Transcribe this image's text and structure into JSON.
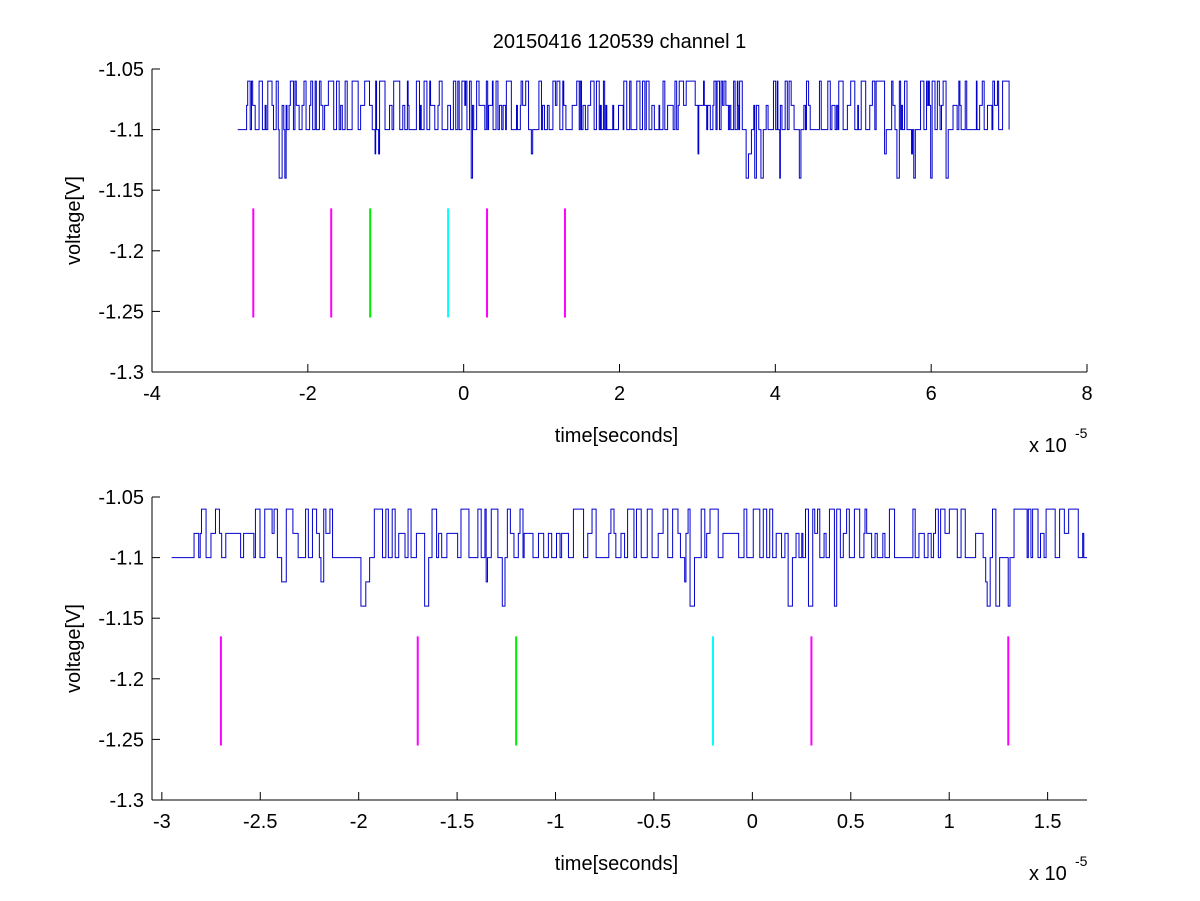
{
  "colors": {
    "signal": "#0000cc",
    "magenta": "#ff00ff",
    "green": "#00ee00",
    "cyan": "#00ffff",
    "axis": "#000000",
    "background": "#ffffff"
  },
  "chart_data": [
    {
      "type": "line",
      "title": "20150416 120539 channel 1",
      "xlabel": "time[seconds]",
      "ylabel": "voltage[V]",
      "x_scale_label": "x 10",
      "x_scale_exponent": "-5",
      "x_unit_factor": 1e-05,
      "xlim": [
        -4,
        8
      ],
      "ylim": [
        -1.3,
        -1.05
      ],
      "xticks": [
        -4,
        -2,
        0,
        2,
        4,
        6,
        8
      ],
      "xtick_labels": [
        "-4",
        "-2",
        "0",
        "2",
        "4",
        "6",
        "8"
      ],
      "yticks": [
        -1.3,
        -1.25,
        -1.2,
        -1.15,
        -1.1,
        -1.05
      ],
      "ytick_labels": [
        "-1.3",
        "-1.25",
        "-1.2",
        "-1.15",
        "-1.1",
        "-1.05"
      ],
      "grid": false,
      "series": [
        {
          "kind": "digitized-signal",
          "color": "#0000cc",
          "x_range": [
            -2.9,
            7.0
          ],
          "baseline": -1.1,
          "levels": [
            -1.14,
            -1.12,
            -1.1,
            -1.08,
            -1.06
          ],
          "spike_upper": -1.06,
          "spike_lower": -1.14
        }
      ],
      "markers": [
        {
          "x": -2.7,
          "y_range": [
            -1.255,
            -1.165
          ],
          "color": "#ff00ff"
        },
        {
          "x": -1.7,
          "y_range": [
            -1.255,
            -1.165
          ],
          "color": "#ff00ff"
        },
        {
          "x": -1.2,
          "y_range": [
            -1.255,
            -1.165
          ],
          "color": "#00ee00"
        },
        {
          "x": -0.2,
          "y_range": [
            -1.255,
            -1.165
          ],
          "color": "#00ffff"
        },
        {
          "x": 0.3,
          "y_range": [
            -1.255,
            -1.165
          ],
          "color": "#ff00ff"
        },
        {
          "x": 1.3,
          "y_range": [
            -1.255,
            -1.165
          ],
          "color": "#ff00ff"
        }
      ]
    },
    {
      "type": "line",
      "title": "",
      "xlabel": "time[seconds]",
      "ylabel": "voltage[V]",
      "x_scale_label": "x 10",
      "x_scale_exponent": "-5",
      "x_unit_factor": 1e-05,
      "xlim": [
        -3.05,
        1.7
      ],
      "ylim": [
        -1.3,
        -1.05
      ],
      "xticks": [
        -3,
        -2.5,
        -2,
        -1.5,
        -1,
        -0.5,
        0,
        0.5,
        1,
        1.5
      ],
      "xtick_labels": [
        "-3",
        "-2.5",
        "-2",
        "-1.5",
        "-1",
        "-0.5",
        "0",
        "0.5",
        "1",
        "1.5"
      ],
      "yticks": [
        -1.3,
        -1.25,
        -1.2,
        -1.15,
        -1.1,
        -1.05
      ],
      "ytick_labels": [
        "-1.3",
        "-1.25",
        "-1.2",
        "-1.15",
        "-1.1",
        "-1.05"
      ],
      "grid": false,
      "series": [
        {
          "kind": "digitized-signal",
          "color": "#0000cc",
          "x_range": [
            -2.95,
            1.7
          ],
          "baseline": -1.1,
          "levels": [
            -1.14,
            -1.12,
            -1.1,
            -1.08,
            -1.06
          ],
          "spike_upper": -1.06,
          "spike_lower": -1.14
        }
      ],
      "markers": [
        {
          "x": -2.7,
          "y_range": [
            -1.255,
            -1.165
          ],
          "color": "#ff00ff"
        },
        {
          "x": -1.7,
          "y_range": [
            -1.255,
            -1.165
          ],
          "color": "#ff00ff"
        },
        {
          "x": -1.2,
          "y_range": [
            -1.255,
            -1.165
          ],
          "color": "#00ee00"
        },
        {
          "x": -0.2,
          "y_range": [
            -1.255,
            -1.165
          ],
          "color": "#00ffff"
        },
        {
          "x": 0.3,
          "y_range": [
            -1.255,
            -1.165
          ],
          "color": "#ff00ff"
        },
        {
          "x": 1.3,
          "y_range": [
            -1.255,
            -1.165
          ],
          "color": "#ff00ff"
        }
      ]
    }
  ]
}
